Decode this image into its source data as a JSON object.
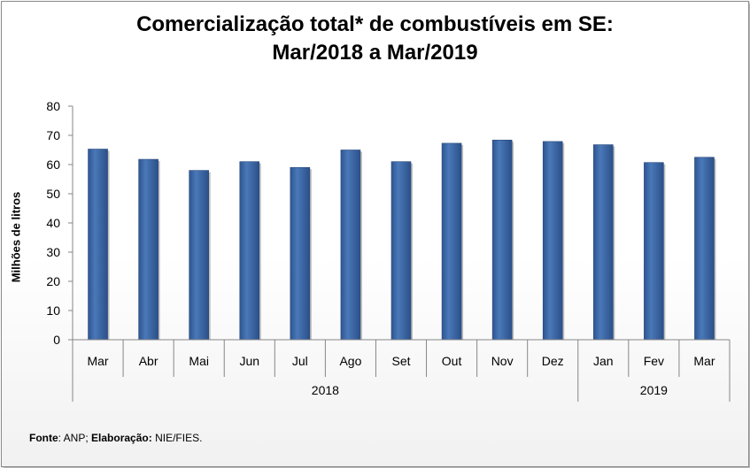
{
  "chart_data": {
    "type": "bar",
    "title_line1": "Comercialização total* de combustíveis em SE:",
    "title_line2": "Mar/2018 a Mar/2019",
    "ylabel": "Milhões de litros",
    "xlabel": "",
    "ylim": [
      0,
      80
    ],
    "yticks": [
      0,
      10,
      20,
      30,
      40,
      50,
      60,
      70,
      80
    ],
    "categories": [
      "Mar",
      "Abr",
      "Mai",
      "Jun",
      "Jul",
      "Ago",
      "Set",
      "Out",
      "Nov",
      "Dez",
      "Jan",
      "Fev",
      "Mar"
    ],
    "values": [
      65.3,
      61.8,
      58.0,
      61.0,
      59.0,
      65.0,
      61.0,
      67.3,
      68.4,
      67.9,
      66.8,
      60.7,
      62.5
    ],
    "year_groups": [
      {
        "label": "2018",
        "count": 10
      },
      {
        "label": "2019",
        "count": 3
      }
    ],
    "bar_color": "#3F6AAA",
    "grid": false,
    "legend": "none"
  },
  "source": {
    "label1": "Fonte",
    "text1": ": ANP; ",
    "label2": "Elaboração:",
    "text2": " NIE/FIES."
  }
}
